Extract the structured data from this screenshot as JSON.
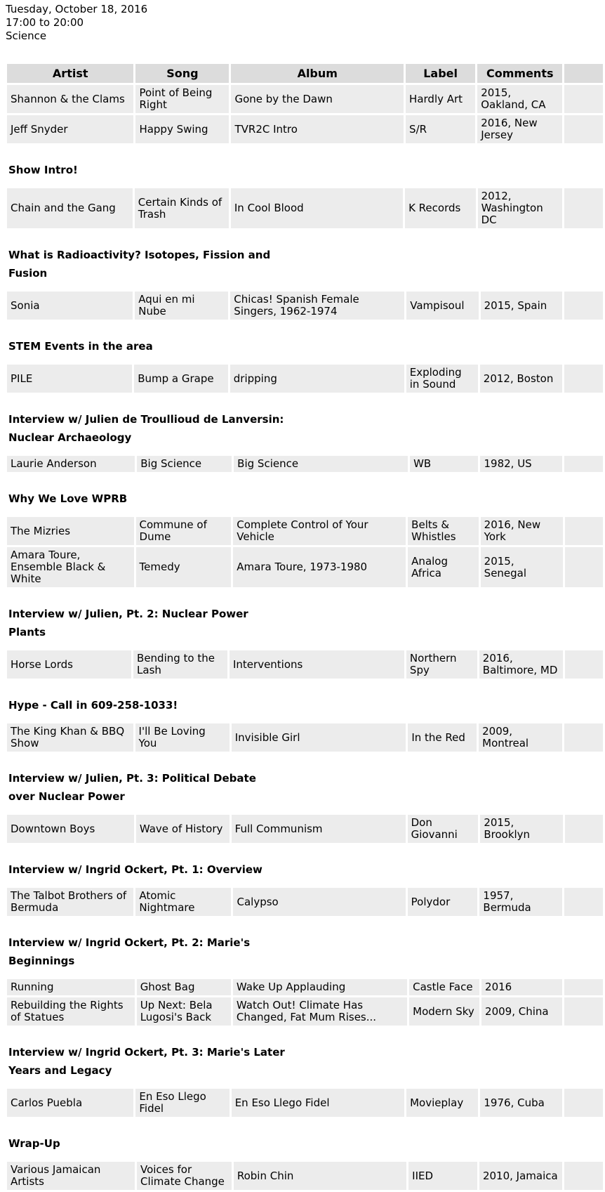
{
  "meta": {
    "date": "Tuesday, October 18, 2016",
    "time": "17:00 to 20:00",
    "category": "Science"
  },
  "colors": {
    "header_bg": "#dcdcdc",
    "cell_bg": "#ececec",
    "text": "#000000"
  },
  "table": {
    "columns": [
      "Artist",
      "Song",
      "Album",
      "Label",
      "Comments"
    ]
  },
  "sections": [
    {
      "heading": null,
      "rows": [
        {
          "artist": "Shannon & the Clams",
          "song": "Point of Being Right",
          "album": "Gone by the Dawn",
          "label": "Hardly Art",
          "comments": "2015, Oakland, CA"
        },
        {
          "artist": "Jeff Snyder",
          "song": "Happy Swing",
          "album": "TVR2C Intro",
          "label": "S/R",
          "comments": "2016, New Jersey"
        }
      ]
    },
    {
      "heading": "Show Intro!",
      "rows": [
        {
          "artist": "Chain and the Gang",
          "song": "Certain Kinds of Trash",
          "album": "In Cool Blood",
          "label": "K Records",
          "comments": "2012, Washington DC"
        }
      ]
    },
    {
      "heading": "What is Radioactivity? Isotopes, Fission and Fusion",
      "rows": [
        {
          "artist": "Sonia",
          "song": "Aqui en mi Nube",
          "album": "Chicas! Spanish Female Singers, 1962-1974",
          "label": "Vampisoul",
          "comments": "2015, Spain"
        }
      ]
    },
    {
      "heading": "STEM Events in the area",
      "rows": [
        {
          "artist": "PILE",
          "song": "Bump a Grape",
          "album": "dripping",
          "label": "Exploding in Sound",
          "comments": "2012, Boston"
        }
      ]
    },
    {
      "heading": "Interview w/ Julien de Troullioud de Lanversin: Nuclear Archaeology",
      "rows": [
        {
          "artist": "Laurie Anderson",
          "song": "Big Science",
          "album": "Big Science",
          "label": "WB",
          "comments": "1982, US"
        }
      ]
    },
    {
      "heading": "Why We Love WPRB",
      "rows": [
        {
          "artist": "The Mizries",
          "song": "Commune of Dume",
          "album": "Complete Control of Your Vehicle",
          "label": "Belts & Whistles",
          "comments": "2016, New York"
        },
        {
          "artist": "Amara Toure, Ensemble Black & White",
          "song": "Temedy",
          "album": "Amara Toure, 1973-1980",
          "label": "Analog Africa",
          "comments": "2015, Senegal"
        }
      ]
    },
    {
      "heading": "Interview w/ Julien, Pt. 2: Nuclear Power Plants",
      "rows": [
        {
          "artist": "Horse Lords",
          "song": "Bending to the Lash",
          "album": "Interventions",
          "label": "Northern Spy",
          "comments": "2016, Baltimore, MD"
        }
      ]
    },
    {
      "heading": "Hype - Call in 609-258-1033!",
      "rows": [
        {
          "artist": "The King Khan & BBQ Show",
          "song": "I'll Be Loving You",
          "album": "Invisible Girl",
          "label": "In the Red",
          "comments": "2009, Montreal"
        }
      ]
    },
    {
      "heading": "Interview w/ Julien, Pt. 3: Political Debate over Nuclear Power",
      "rows": [
        {
          "artist": "Downtown Boys",
          "song": "Wave of History",
          "album": "Full Communism",
          "label": "Don Giovanni",
          "comments": "2015, Brooklyn"
        }
      ]
    },
    {
      "heading": "Interview w/ Ingrid Ockert, Pt. 1: Overview",
      "rows": [
        {
          "artist": "The Talbot Brothers of Bermuda",
          "song": "Atomic Nightmare",
          "album": "Calypso",
          "label": "Polydor",
          "comments": "1957, Bermuda"
        }
      ]
    },
    {
      "heading": "Interview w/ Ingrid Ockert, Pt. 2: Marie's Beginnings",
      "rows": [
        {
          "artist": "Running",
          "song": "Ghost Bag",
          "album": "Wake Up Applauding",
          "label": "Castle Face",
          "comments": "2016"
        },
        {
          "artist": "Rebuilding the Rights of Statues",
          "song": "Up Next: Bela Lugosi's Back",
          "album": "Watch Out! Climate Has Changed, Fat Mum Rises...",
          "label": "Modern Sky",
          "comments": "2009, China"
        }
      ]
    },
    {
      "heading": "Interview w/ Ingrid Ockert, Pt. 3: Marie's Later Years and Legacy",
      "rows": [
        {
          "artist": "Carlos Puebla",
          "song": "En Eso Llego Fidel",
          "album": "En Eso Llego Fidel",
          "label": "Movieplay",
          "comments": "1976, Cuba"
        }
      ]
    },
    {
      "heading": "Wrap-Up",
      "rows": [
        {
          "artist": "Various Jamaican Artists",
          "song": "Voices for Climate Change",
          "album": "Robin Chin",
          "label": "IIED",
          "comments": "2010, Jamaica"
        }
      ]
    }
  ]
}
